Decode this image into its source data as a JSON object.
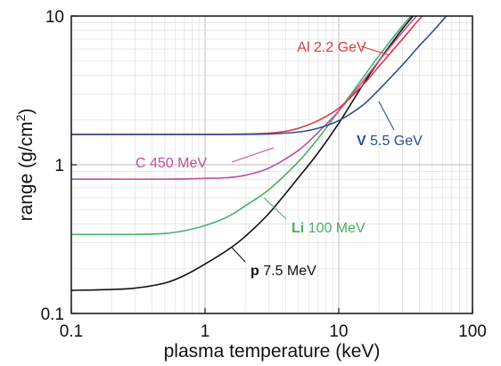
{
  "chart_data": {
    "type": "line",
    "xlabel": "plasma temperature (keV)",
    "ylabel_main": "range (g/cm",
    "ylabel_sup": "2",
    "ylabel_end": ")",
    "xscale": "log",
    "yscale": "log",
    "xlim": [
      0.1,
      100
    ],
    "ylim": [
      0.1,
      10
    ],
    "grid": true,
    "x_ticks": [
      {
        "value": 0.1,
        "label": "0.1"
      },
      {
        "value": 1,
        "label": "1"
      },
      {
        "value": 10,
        "label": "10"
      },
      {
        "value": 100,
        "label": "100"
      }
    ],
    "y_ticks": [
      {
        "value": 0.1,
        "label": "0.1"
      },
      {
        "value": 1,
        "label": "1"
      },
      {
        "value": 10,
        "label": "10"
      }
    ],
    "series": [
      {
        "name": "p",
        "energy": "7.5 MeV",
        "color": "#111111",
        "x": [
          0.1,
          0.2,
          0.3,
          0.5,
          0.7,
          1,
          1.5,
          2,
          3,
          5,
          7,
          10,
          15,
          20,
          30,
          40
        ],
        "y": [
          0.143,
          0.145,
          0.148,
          0.16,
          0.18,
          0.215,
          0.27,
          0.33,
          0.47,
          0.82,
          1.2,
          1.9,
          3.4,
          5.0,
          8.2,
          11.2
        ]
      },
      {
        "name": "Li",
        "energy": "100 MeV",
        "color": "#4caf63",
        "x": [
          0.1,
          0.3,
          0.5,
          0.7,
          1,
          1.5,
          2,
          3,
          5,
          7,
          10,
          15,
          20,
          30,
          40
        ],
        "y": [
          0.34,
          0.34,
          0.345,
          0.36,
          0.39,
          0.45,
          0.53,
          0.68,
          1.05,
          1.5,
          2.3,
          3.8,
          5.4,
          8.6,
          11.5
        ]
      },
      {
        "name": "C",
        "energy": "450 MeV",
        "color": "#c04f9c",
        "x": [
          0.1,
          0.5,
          1,
          1.5,
          2,
          3,
          5,
          7,
          10,
          15,
          20,
          30,
          40
        ],
        "y": [
          0.8,
          0.8,
          0.81,
          0.82,
          0.85,
          0.95,
          1.25,
          1.65,
          2.3,
          3.6,
          5.0,
          7.8,
          10.5
        ]
      },
      {
        "name": "Al",
        "energy": "2.2 GeV",
        "color": "#e03a3a",
        "x": [
          0.1,
          1,
          2,
          3,
          4,
          5,
          7,
          10,
          15,
          20,
          30,
          40,
          50
        ],
        "y": [
          1.6,
          1.6,
          1.61,
          1.63,
          1.68,
          1.76,
          1.98,
          2.4,
          3.4,
          4.6,
          7.0,
          9.5,
          11.5
        ]
      },
      {
        "name": "V",
        "energy": "5.5 GeV",
        "color": "#2d4c9a",
        "x": [
          0.1,
          1,
          2,
          3,
          5,
          7,
          10,
          15,
          20,
          30,
          40,
          50,
          70
        ],
        "y": [
          1.6,
          1.6,
          1.6,
          1.61,
          1.66,
          1.76,
          1.98,
          2.5,
          3.2,
          4.7,
          6.3,
          7.8,
          11.0
        ]
      }
    ],
    "annotations": [
      {
        "symbol": "Al",
        "energy": "2.2 GeV",
        "color": "#e03a3a",
        "bold": false
      },
      {
        "symbol": "V",
        "energy": "5.5 GeV",
        "color": "#2d4c9a",
        "bold": true
      },
      {
        "symbol": "C",
        "energy": "450 MeV",
        "color": "#c04f9c",
        "bold": false
      },
      {
        "symbol": "Li",
        "energy": "100 MeV",
        "color": "#4caf63",
        "bold": true
      },
      {
        "symbol": "p",
        "energy": "7.5 MeV",
        "color": "#111111",
        "bold": true
      }
    ]
  }
}
